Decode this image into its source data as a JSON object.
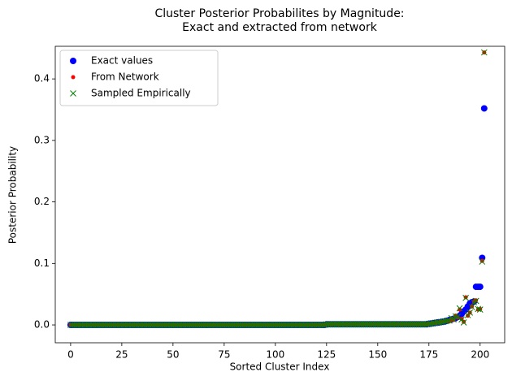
{
  "chart_data": {
    "type": "scatter",
    "title": [
      "Cluster Posterior Probabilites by Magnitude:",
      "Exact and extracted from network"
    ],
    "x_label": "Sorted Cluster Index",
    "y_label": "Posterior Probability",
    "xlim": [
      -7.5,
      212
    ],
    "ylim": [
      -0.029,
      0.453
    ],
    "xticks": [
      0,
      25,
      50,
      75,
      100,
      125,
      150,
      175,
      200
    ],
    "yticks": [
      {
        "value": 0,
        "label": "0.0"
      },
      0.1,
      0.2,
      0.3,
      0.4
    ],
    "legend": "upper left",
    "x": [
      0,
      1,
      2,
      3,
      4,
      5,
      6,
      7,
      8,
      9,
      10,
      11,
      12,
      13,
      14,
      15,
      16,
      17,
      18,
      19,
      20,
      21,
      22,
      23,
      24,
      25,
      26,
      27,
      28,
      29,
      30,
      31,
      32,
      33,
      34,
      35,
      36,
      37,
      38,
      39,
      40,
      41,
      42,
      43,
      44,
      45,
      46,
      47,
      48,
      49,
      50,
      51,
      52,
      53,
      54,
      55,
      56,
      57,
      58,
      59,
      60,
      61,
      62,
      63,
      64,
      65,
      66,
      67,
      68,
      69,
      70,
      71,
      72,
      73,
      74,
      75,
      76,
      77,
      78,
      79,
      80,
      81,
      82,
      83,
      84,
      85,
      86,
      87,
      88,
      89,
      90,
      91,
      92,
      93,
      94,
      95,
      96,
      97,
      98,
      99,
      100,
      101,
      102,
      103,
      104,
      105,
      106,
      107,
      108,
      109,
      110,
      111,
      112,
      113,
      114,
      115,
      116,
      117,
      118,
      119,
      120,
      121,
      122,
      123,
      124,
      125,
      126,
      127,
      128,
      129,
      130,
      131,
      132,
      133,
      134,
      135,
      136,
      137,
      138,
      139,
      140,
      141,
      142,
      143,
      144,
      145,
      146,
      147,
      148,
      149,
      150,
      151,
      152,
      153,
      154,
      155,
      156,
      157,
      158,
      159,
      160,
      161,
      162,
      163,
      164,
      165,
      166,
      167,
      168,
      169,
      170,
      171,
      172,
      173,
      174,
      175,
      176,
      177,
      178,
      179,
      180,
      181,
      182,
      183,
      184,
      185,
      186,
      187,
      188,
      189,
      190,
      191,
      192,
      193,
      194,
      195,
      196,
      197,
      198,
      199,
      200,
      201,
      202
    ],
    "series": [
      {
        "name": "Exact values",
        "color": "#0000ff",
        "marker": "circle",
        "values": [
          0,
          0,
          0,
          0,
          0,
          0,
          0,
          0,
          0,
          0,
          0,
          0,
          0,
          0,
          0,
          0,
          0,
          0,
          0,
          0,
          0,
          0,
          0,
          0,
          0,
          0,
          0,
          0,
          0,
          0,
          0,
          0,
          0,
          0,
          0,
          0,
          0,
          0,
          0,
          0,
          0,
          0,
          0,
          0,
          0,
          0,
          0,
          0,
          0,
          0,
          0,
          0,
          0,
          0,
          0,
          0,
          0,
          0,
          0,
          0,
          0,
          0,
          0,
          0,
          0,
          0,
          0,
          0,
          0,
          0,
          0,
          0,
          0,
          0,
          0,
          0,
          0,
          0,
          0,
          0,
          0,
          0,
          0,
          0,
          0,
          0,
          0,
          0,
          0,
          0,
          0,
          0,
          0,
          0,
          0,
          0,
          0,
          0,
          0,
          0,
          0,
          0,
          0,
          0,
          0,
          0,
          0,
          0,
          0,
          0,
          0,
          0,
          0,
          0,
          0,
          0,
          0,
          0,
          0,
          0,
          0,
          0,
          0,
          0,
          0,
          0.001,
          0.001,
          0.001,
          0.001,
          0.001,
          0.001,
          0.001,
          0.001,
          0.001,
          0.001,
          0.001,
          0.001,
          0.001,
          0.001,
          0.001,
          0.001,
          0.001,
          0.001,
          0.001,
          0.001,
          0.001,
          0.001,
          0.001,
          0.001,
          0.001,
          0.001,
          0.001,
          0.001,
          0.001,
          0.001,
          0.001,
          0.001,
          0.001,
          0.001,
          0.001,
          0.001,
          0.001,
          0.001,
          0.001,
          0.001,
          0.001,
          0.001,
          0.001,
          0.001,
          0.001,
          0.001,
          0.001,
          0.001,
          0.001,
          0.001,
          0.002,
          0.002,
          0.003,
          0.003,
          0.004,
          0.004,
          0.005,
          0.005,
          0.006,
          0.007,
          0.008,
          0.009,
          0.01,
          0.011,
          0.013,
          0.015,
          0.018,
          0.022,
          0.025,
          0.03,
          0.035,
          0.037,
          0.038,
          0.062,
          0.062,
          0.062,
          0.109,
          0.352
        ]
      },
      {
        "name": "From Network",
        "color": "#ff0000",
        "marker": "dot",
        "values": [
          0,
          0,
          0,
          0,
          0,
          0,
          0,
          0,
          0,
          0,
          0,
          0,
          0,
          0,
          0,
          0,
          0,
          0,
          0,
          0,
          0,
          0,
          0,
          0,
          0,
          0,
          0,
          0,
          0,
          0,
          0,
          0,
          0,
          0,
          0,
          0,
          0,
          0,
          0,
          0,
          0,
          0,
          0,
          0,
          0,
          0,
          0,
          0,
          0,
          0,
          0,
          0,
          0,
          0,
          0,
          0,
          0,
          0,
          0,
          0,
          0,
          0,
          0,
          0,
          0,
          0,
          0,
          0,
          0,
          0,
          0,
          0,
          0,
          0,
          0,
          0,
          0,
          0,
          0,
          0,
          0,
          0,
          0,
          0,
          0,
          0,
          0,
          0,
          0,
          0,
          0,
          0,
          0,
          0,
          0,
          0,
          0,
          0,
          0,
          0,
          0,
          0,
          0,
          0,
          0,
          0,
          0,
          0,
          0,
          0,
          0,
          0,
          0,
          0,
          0,
          0,
          0,
          0,
          0,
          0,
          0,
          0,
          0,
          0,
          0,
          0.001,
          0.001,
          0.001,
          0.001,
          0.001,
          0.001,
          0.001,
          0.001,
          0.001,
          0.001,
          0.001,
          0.001,
          0.001,
          0.001,
          0.001,
          0.001,
          0.001,
          0.001,
          0.001,
          0.001,
          0.001,
          0.001,
          0.001,
          0.001,
          0.001,
          0.001,
          0.001,
          0.001,
          0.001,
          0.001,
          0.001,
          0.001,
          0.001,
          0.001,
          0.001,
          0.001,
          0.001,
          0.001,
          0.001,
          0.001,
          0.001,
          0.001,
          0.001,
          0.001,
          0.001,
          0.001,
          0.001,
          0.001,
          0.001,
          0.001,
          0.002,
          0.002,
          0.003,
          0.003,
          0.004,
          0.004,
          0.005,
          0.005,
          0.006,
          0.007,
          0.006,
          0.01,
          0.008,
          0.015,
          0.012,
          0.025,
          0.01,
          0.005,
          0.045,
          0.015,
          0.02,
          0.03,
          0.038,
          0.04,
          0.025,
          0.026,
          0.104,
          0.443
        ]
      },
      {
        "name": "Sampled Empirically",
        "color": "#008000",
        "marker": "x",
        "values": [
          0,
          0,
          0,
          0,
          0,
          0,
          0,
          0,
          0,
          0,
          0,
          0,
          0,
          0,
          0,
          0,
          0,
          0,
          0,
          0,
          0,
          0,
          0,
          0,
          0,
          0,
          0,
          0,
          0,
          0,
          0,
          0,
          0,
          0,
          0,
          0,
          0,
          0,
          0,
          0,
          0,
          0,
          0,
          0,
          0,
          0,
          0,
          0,
          0,
          0,
          0,
          0,
          0,
          0,
          0,
          0,
          0,
          0,
          0,
          0,
          0,
          0,
          0,
          0,
          0,
          0,
          0,
          0,
          0,
          0,
          0,
          0,
          0,
          0,
          0,
          0,
          0,
          0,
          0,
          0,
          0,
          0,
          0,
          0,
          0,
          0,
          0,
          0,
          0,
          0,
          0,
          0,
          0,
          0,
          0,
          0,
          0,
          0,
          0,
          0,
          0,
          0,
          0,
          0,
          0,
          0,
          0,
          0,
          0,
          0,
          0,
          0,
          0,
          0,
          0,
          0,
          0,
          0,
          0,
          0,
          0,
          0,
          0,
          0,
          0,
          0.001,
          0.001,
          0.001,
          0.001,
          0.001,
          0.001,
          0.001,
          0.001,
          0.001,
          0.001,
          0.001,
          0.001,
          0.001,
          0.001,
          0.001,
          0.001,
          0.001,
          0.001,
          0.001,
          0.001,
          0.001,
          0.001,
          0.001,
          0.001,
          0.001,
          0.001,
          0.001,
          0.001,
          0.001,
          0.001,
          0.001,
          0.001,
          0.001,
          0.001,
          0.001,
          0.001,
          0.001,
          0.001,
          0.001,
          0.001,
          0.001,
          0.001,
          0.001,
          0.001,
          0.001,
          0.001,
          0.001,
          0.001,
          0.001,
          0.001,
          0.002,
          0.002,
          0.003,
          0.003,
          0.004,
          0.004,
          0.005,
          0.005,
          0.006,
          0.007,
          0.007,
          0.011,
          0.009,
          0.014,
          0.013,
          0.027,
          0.009,
          0.004,
          0.044,
          0.016,
          0.02,
          0.029,
          0.037,
          0.039,
          0.026,
          0.025,
          0.103,
          0.443
        ]
      }
    ]
  }
}
